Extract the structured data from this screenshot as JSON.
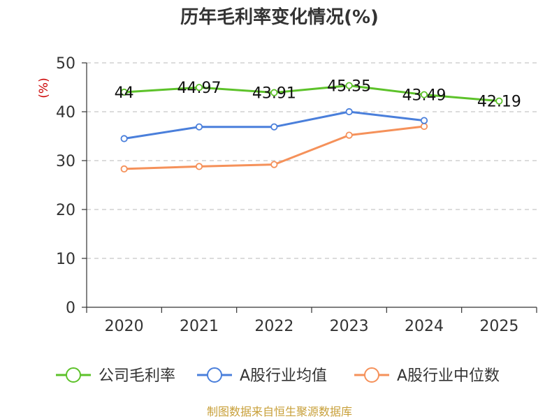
{
  "chart_data": {
    "type": "line",
    "title": "历年毛利率变化情况(%)",
    "ylabel": "(%)",
    "xlabel": "",
    "categories": [
      "2020",
      "2021",
      "2022",
      "2023",
      "2024",
      "2025"
    ],
    "ylim": [
      0,
      50
    ],
    "yticks": [
      0,
      10,
      20,
      30,
      40,
      50
    ],
    "grid": true,
    "legend_position": "bottom",
    "series": [
      {
        "name": "公司毛利率",
        "color": "#5dc22a",
        "values": [
          44,
          44.97,
          43.91,
          45.35,
          43.49,
          42.19
        ],
        "labels": [
          "44",
          "44.97",
          "43.91",
          "45.35",
          "43.49",
          "42.19"
        ]
      },
      {
        "name": "A股行业均值",
        "color": "#4a7fdb",
        "values": [
          34.5,
          36.9,
          36.9,
          40.0,
          38.2,
          null
        ]
      },
      {
        "name": "A股行业中位数",
        "color": "#f5915a",
        "values": [
          28.3,
          28.8,
          29.2,
          35.2,
          37.0,
          null
        ]
      }
    ]
  },
  "source_text": "制图数据来自恒生聚源数据库"
}
